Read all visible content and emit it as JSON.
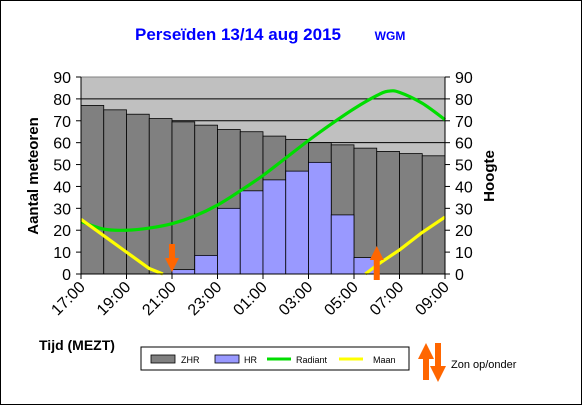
{
  "title": "Perseïden 13/14 aug 2015",
  "subtitle": "WGM",
  "colors": {
    "zhr": "#808080",
    "hr": "#9999ff",
    "radiant": "#00dd00",
    "maan": "#ffff00",
    "arrow": "#ff6600",
    "plot_bg": "#c0c0c0"
  },
  "chart_data": {
    "type": "bar",
    "title": "Perseïden 13/14 aug 2015",
    "subtitle": "WGM",
    "xlabel": "Tijd (MEZT)",
    "ylabel": "Aantal meteoren",
    "y2label": "Hoogte",
    "ylim": [
      0,
      90
    ],
    "y2lim": [
      0,
      90
    ],
    "yticks": [
      "0",
      "10",
      "20",
      "30",
      "40",
      "50",
      "60",
      "70",
      "80",
      "90"
    ],
    "y2ticks": [
      "0",
      "10",
      "20",
      "30",
      "40",
      "50",
      "60",
      "70",
      "80",
      "90"
    ],
    "xtick_labels": [
      "17:00",
      "19:00",
      "21:00",
      "23:00",
      "01:00",
      "03:00",
      "05:00",
      "07:00",
      "09:00"
    ],
    "grid": true,
    "categories": [
      "17:00",
      "18:00",
      "19:00",
      "20:00",
      "21:00",
      "22:00",
      "23:00",
      "00:00",
      "01:00",
      "02:00",
      "03:00",
      "04:00",
      "05:00",
      "06:00",
      "07:00",
      "08:00"
    ],
    "series": [
      {
        "name": "ZHR",
        "type": "bar",
        "values": [
          77,
          75,
          73,
          71,
          69.5,
          68,
          66,
          65,
          63,
          61.5,
          60,
          59,
          57.5,
          56,
          55,
          54
        ]
      },
      {
        "name": "HR",
        "type": "bar",
        "values": [
          0,
          0,
          0,
          0,
          2,
          8.5,
          30,
          38,
          43,
          47,
          51,
          27,
          7.5,
          0,
          0,
          0
        ]
      },
      {
        "name": "Radiant",
        "type": "line",
        "axis": "right",
        "x": [
          17,
          18,
          19,
          20,
          21,
          22,
          23,
          24,
          25,
          26,
          27,
          28,
          29,
          30,
          30.5,
          31,
          32,
          33
        ],
        "values": [
          24,
          20.5,
          20,
          21,
          23,
          26.5,
          31.5,
          38,
          45,
          53,
          61,
          68.5,
          75.5,
          81.5,
          83.5,
          83,
          78,
          70.5
        ]
      },
      {
        "name": "Maan",
        "type": "line",
        "axis": "right",
        "x": [
          17,
          18,
          19,
          20,
          20.6,
          29.5,
          30,
          31,
          32,
          33
        ],
        "values": [
          25,
          17.5,
          10,
          2.5,
          0,
          0,
          4,
          11,
          19,
          26
        ]
      }
    ],
    "sun_events": [
      {
        "time": 21,
        "direction": "down"
      },
      {
        "time": 30,
        "direction": "up"
      }
    ],
    "legend": [
      "ZHR",
      "HR",
      "Radiant",
      "Maan"
    ],
    "legend_placement": "bottom",
    "extra_legend": "Zon op/onder"
  }
}
